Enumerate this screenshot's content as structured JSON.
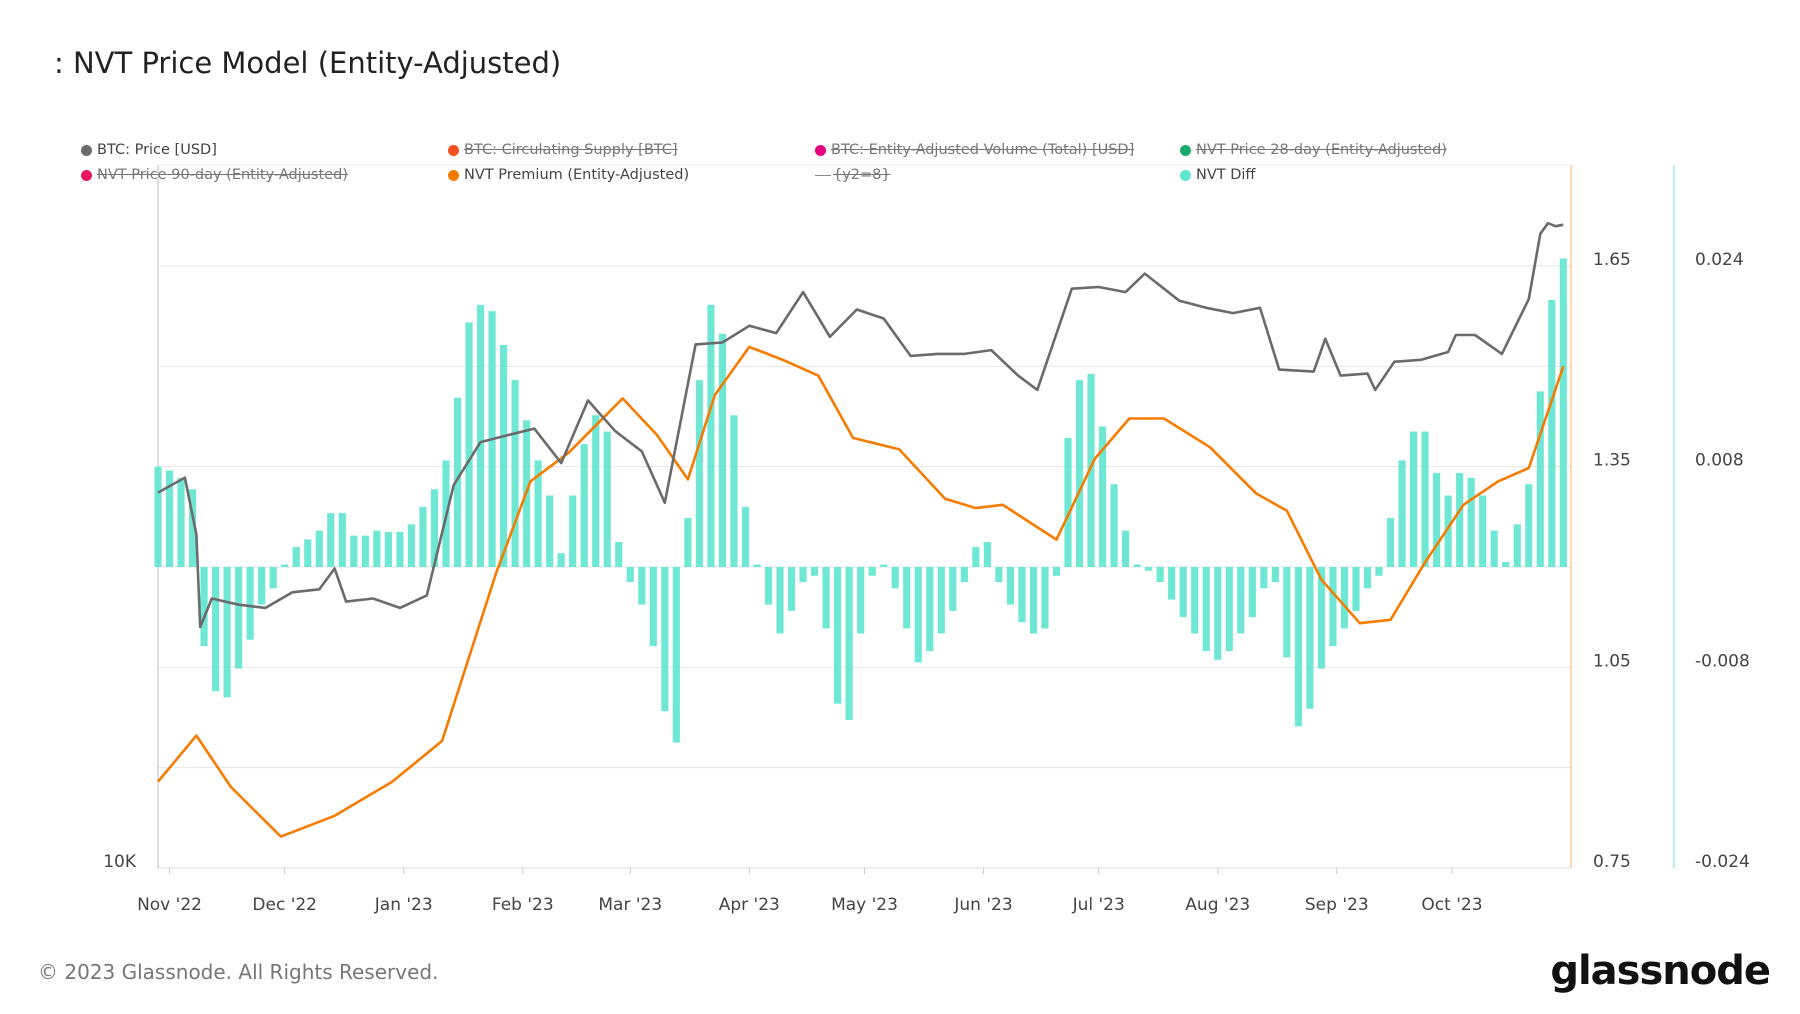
{
  "title": ": NVT Price Model (Entity-Adjusted)",
  "legend": [
    {
      "label": "BTC: Price [USD]",
      "color": "#6b6b6b",
      "enabled": true,
      "marker": "dot"
    },
    {
      "label": "BTC: Circulating Supply [BTC]",
      "color": "#f4511e",
      "enabled": false,
      "marker": "dot"
    },
    {
      "label": "BTC: Entity-Adjusted Volume (Total) [USD]",
      "color": "#e6007e",
      "enabled": false,
      "marker": "dot"
    },
    {
      "label": "NVT Price 28-day (Entity-Adjusted)",
      "color": "#1aaa6b",
      "enabled": false,
      "marker": "dot"
    },
    {
      "label": "NVT Price 90-day (Entity-Adjusted)",
      "color": "#e8175d",
      "enabled": false,
      "marker": "dot"
    },
    {
      "label": "NVT Premium (Entity-Adjusted)",
      "color": "#f57c00",
      "enabled": true,
      "marker": "dot"
    },
    {
      "label": "{y2=8}",
      "color": "#888888",
      "enabled": false,
      "marker": "line"
    },
    {
      "label": "NVT Diff",
      "color": "#5ee6d0",
      "enabled": true,
      "marker": "dot"
    }
  ],
  "footer": "© 2023 Glassnode. All Rights Reserved.",
  "logo": "glassnode",
  "chart_data": {
    "type": "line+bar",
    "xlim": [
      "2022-10-29",
      "2023-11-01"
    ],
    "x_ticks": [
      {
        "date": "2022-11-01",
        "label": "Nov '22"
      },
      {
        "date": "2022-12-01",
        "label": "Dec '22"
      },
      {
        "date": "2023-01-01",
        "label": "Jan '23"
      },
      {
        "date": "2023-02-01",
        "label": "Feb '23"
      },
      {
        "date": "2023-03-01",
        "label": "Mar '23"
      },
      {
        "date": "2023-04-01",
        "label": "Apr '23"
      },
      {
        "date": "2023-05-01",
        "label": "May '23"
      },
      {
        "date": "2023-06-01",
        "label": "Jun '23"
      },
      {
        "date": "2023-07-01",
        "label": "Jul '23"
      },
      {
        "date": "2023-08-01",
        "label": "Aug '23"
      },
      {
        "date": "2023-09-01",
        "label": "Sep '23"
      },
      {
        "date": "2023-10-01",
        "label": "Oct '23"
      }
    ],
    "axes": {
      "price": {
        "scale": "log",
        "ylim": [
          10000,
          38700
        ],
        "ticks": [
          {
            "value": 10000,
            "label": "10K"
          }
        ]
      },
      "premium": {
        "scale": "linear",
        "ylim": [
          0.75,
          1.65
        ],
        "ticks": [
          "1.65",
          "1.35",
          "1.05",
          "0.75"
        ],
        "grid_values": [
          0.75,
          0.9,
          1.05,
          1.2,
          1.35,
          1.5,
          1.65
        ],
        "color": "#f57c00"
      },
      "diff": {
        "scale": "linear",
        "ylim": [
          -0.024,
          0.024
        ],
        "ticks": [
          "0.024",
          "0.008",
          "-0.008",
          "-0.024"
        ],
        "color": "#5ee6d0"
      }
    },
    "grid": true,
    "legend_position": "top",
    "series": [
      {
        "name": "BTC: Price [USD]",
        "type": "line",
        "axis": "price",
        "color": "#6b6b6b",
        "points": [
          [
            "2022-10-29",
            20600
          ],
          [
            "2022-11-05",
            21200
          ],
          [
            "2022-11-08",
            19000
          ],
          [
            "2022-11-09",
            15900
          ],
          [
            "2022-11-12",
            16800
          ],
          [
            "2022-11-19",
            16600
          ],
          [
            "2022-11-26",
            16500
          ],
          [
            "2022-12-03",
            17000
          ],
          [
            "2022-12-10",
            17100
          ],
          [
            "2022-12-14",
            17800
          ],
          [
            "2022-12-17",
            16700
          ],
          [
            "2022-12-24",
            16800
          ],
          [
            "2022-12-31",
            16500
          ],
          [
            "2023-01-07",
            16900
          ],
          [
            "2023-01-14",
            20900
          ],
          [
            "2023-01-21",
            22700
          ],
          [
            "2023-01-28",
            23000
          ],
          [
            "2023-02-04",
            23300
          ],
          [
            "2023-02-11",
            21800
          ],
          [
            "2023-02-18",
            24600
          ],
          [
            "2023-02-25",
            23200
          ],
          [
            "2023-03-04",
            22300
          ],
          [
            "2023-03-10",
            20200
          ],
          [
            "2023-03-18",
            27400
          ],
          [
            "2023-03-25",
            27500
          ],
          [
            "2023-04-01",
            28400
          ],
          [
            "2023-04-08",
            28000
          ],
          [
            "2023-04-15",
            30300
          ],
          [
            "2023-04-22",
            27800
          ],
          [
            "2023-04-29",
            29300
          ],
          [
            "2023-05-06",
            28800
          ],
          [
            "2023-05-13",
            26800
          ],
          [
            "2023-05-20",
            26900
          ],
          [
            "2023-05-27",
            26900
          ],
          [
            "2023-06-03",
            27100
          ],
          [
            "2023-06-10",
            25800
          ],
          [
            "2023-06-15",
            25100
          ],
          [
            "2023-06-24",
            30500
          ],
          [
            "2023-07-01",
            30600
          ],
          [
            "2023-07-08",
            30300
          ],
          [
            "2023-07-13",
            31400
          ],
          [
            "2023-07-22",
            29800
          ],
          [
            "2023-07-29",
            29400
          ],
          [
            "2023-08-05",
            29100
          ],
          [
            "2023-08-12",
            29400
          ],
          [
            "2023-08-17",
            26100
          ],
          [
            "2023-08-26",
            26000
          ],
          [
            "2023-08-29",
            27700
          ],
          [
            "2023-09-02",
            25800
          ],
          [
            "2023-09-09",
            25900
          ],
          [
            "2023-09-11",
            25100
          ],
          [
            "2023-09-16",
            26500
          ],
          [
            "2023-09-23",
            26600
          ],
          [
            "2023-09-30",
            27000
          ],
          [
            "2023-10-02",
            27900
          ],
          [
            "2023-10-07",
            27900
          ],
          [
            "2023-10-14",
            26900
          ],
          [
            "2023-10-21",
            29900
          ],
          [
            "2023-10-24",
            33900
          ],
          [
            "2023-10-26",
            34600
          ],
          [
            "2023-10-28",
            34400
          ],
          [
            "2023-10-30",
            34500
          ]
        ]
      },
      {
        "name": "NVT Premium (Entity-Adjusted)",
        "type": "line",
        "axis": "premium",
        "color": "#f57c00",
        "points": [
          [
            "2022-10-29",
            0.879
          ],
          [
            "2022-11-08",
            0.948
          ],
          [
            "2022-11-17",
            0.871
          ],
          [
            "2022-11-30",
            0.797
          ],
          [
            "2022-12-14",
            0.828
          ],
          [
            "2022-12-29",
            0.879
          ],
          [
            "2023-01-11",
            0.94
          ],
          [
            "2023-01-25",
            1.19
          ],
          [
            "2023-02-03",
            1.328
          ],
          [
            "2023-02-13",
            1.371
          ],
          [
            "2023-02-27",
            1.452
          ],
          [
            "2023-03-08",
            1.397
          ],
          [
            "2023-03-16",
            1.331
          ],
          [
            "2023-03-23",
            1.457
          ],
          [
            "2023-04-01",
            1.529
          ],
          [
            "2023-04-10",
            1.509
          ],
          [
            "2023-04-19",
            1.486
          ],
          [
            "2023-04-28",
            1.393
          ],
          [
            "2023-05-10",
            1.376
          ],
          [
            "2023-05-22",
            1.302
          ],
          [
            "2023-05-30",
            1.288
          ],
          [
            "2023-06-06",
            1.293
          ],
          [
            "2023-06-20",
            1.241
          ],
          [
            "2023-06-30",
            1.362
          ],
          [
            "2023-07-09",
            1.422
          ],
          [
            "2023-07-18",
            1.422
          ],
          [
            "2023-07-30",
            1.379
          ],
          [
            "2023-08-11",
            1.31
          ],
          [
            "2023-08-19",
            1.284
          ],
          [
            "2023-08-28",
            1.181
          ],
          [
            "2023-09-07",
            1.116
          ],
          [
            "2023-09-15",
            1.121
          ],
          [
            "2023-09-24",
            1.207
          ],
          [
            "2023-10-04",
            1.293
          ],
          [
            "2023-10-13",
            1.328
          ],
          [
            "2023-10-21",
            1.348
          ],
          [
            "2023-10-30",
            1.5
          ]
        ]
      },
      {
        "name": "NVT Diff",
        "type": "bar",
        "axis": "diff",
        "color": "#5ee6d0",
        "dates": [
          "2022-10-29",
          "2022-11-01",
          "2022-11-04",
          "2022-11-07",
          "2022-11-10",
          "2022-11-13",
          "2022-11-16",
          "2022-11-19",
          "2022-11-22",
          "2022-11-25",
          "2022-11-28",
          "2022-12-01",
          "2022-12-04",
          "2022-12-07",
          "2022-12-10",
          "2022-12-13",
          "2022-12-16",
          "2022-12-19",
          "2022-12-22",
          "2022-12-25",
          "2022-12-28",
          "2022-12-31",
          "2023-01-03",
          "2023-01-06",
          "2023-01-09",
          "2023-01-12",
          "2023-01-15",
          "2023-01-18",
          "2023-01-21",
          "2023-01-24",
          "2023-01-27",
          "2023-01-30",
          "2023-02-02",
          "2023-02-05",
          "2023-02-08",
          "2023-02-11",
          "2023-02-14",
          "2023-02-17",
          "2023-02-20",
          "2023-02-23",
          "2023-02-26",
          "2023-03-01",
          "2023-03-04",
          "2023-03-07",
          "2023-03-10",
          "2023-03-13",
          "2023-03-16",
          "2023-03-19",
          "2023-03-22",
          "2023-03-25",
          "2023-03-28",
          "2023-03-31",
          "2023-04-03",
          "2023-04-06",
          "2023-04-09",
          "2023-04-12",
          "2023-04-15",
          "2023-04-18",
          "2023-04-21",
          "2023-04-24",
          "2023-04-27",
          "2023-04-30",
          "2023-05-03",
          "2023-05-06",
          "2023-05-09",
          "2023-05-12",
          "2023-05-15",
          "2023-05-18",
          "2023-05-21",
          "2023-05-24",
          "2023-05-27",
          "2023-05-30",
          "2023-06-02",
          "2023-06-05",
          "2023-06-08",
          "2023-06-11",
          "2023-06-14",
          "2023-06-17",
          "2023-06-20",
          "2023-06-23",
          "2023-06-26",
          "2023-06-29",
          "2023-07-02",
          "2023-07-05",
          "2023-07-08",
          "2023-07-11",
          "2023-07-14",
          "2023-07-17",
          "2023-07-20",
          "2023-07-23",
          "2023-07-26",
          "2023-07-29",
          "2023-08-01",
          "2023-08-04",
          "2023-08-07",
          "2023-08-10",
          "2023-08-13",
          "2023-08-16",
          "2023-08-19",
          "2023-08-22",
          "2023-08-25",
          "2023-08-28",
          "2023-08-31",
          "2023-09-03",
          "2023-09-06",
          "2023-09-09",
          "2023-09-12",
          "2023-09-15",
          "2023-09-18",
          "2023-09-21",
          "2023-09-24",
          "2023-09-27",
          "2023-09-30",
          "2023-10-03",
          "2023-10-06",
          "2023-10-09",
          "2023-10-12",
          "2023-10-15",
          "2023-10-18",
          "2023-10-21",
          "2023-10-24",
          "2023-10-27",
          "2023-10-30"
        ],
        "values": [
          0.008,
          0.0077,
          0.0071,
          0.0062,
          -0.0063,
          -0.0099,
          -0.0104,
          -0.0081,
          -0.0058,
          -0.003,
          -0.0017,
          0.0002,
          0.0016,
          0.0022,
          0.0029,
          0.0043,
          0.0043,
          0.0025,
          0.0025,
          0.0029,
          0.0028,
          0.0028,
          0.0034,
          0.0048,
          0.0062,
          0.0085,
          0.0135,
          0.0195,
          0.0209,
          0.0204,
          0.0177,
          0.0149,
          0.0117,
          0.0085,
          0.0057,
          0.0011,
          0.0057,
          0.0098,
          0.0121,
          0.0108,
          0.002,
          -0.0012,
          -0.003,
          -0.0063,
          -0.0115,
          -0.014,
          0.0039,
          0.0149,
          0.0209,
          0.0186,
          0.0121,
          0.0048,
          0.0002,
          -0.003,
          -0.0053,
          -0.0035,
          -0.0012,
          -0.0007,
          -0.0049,
          -0.0109,
          -0.0122,
          -0.0053,
          -0.0007,
          0.0002,
          -0.0017,
          -0.0049,
          -0.0076,
          -0.0067,
          -0.0053,
          -0.0035,
          -0.0012,
          0.0016,
          0.002,
          -0.0012,
          -0.003,
          -0.0044,
          -0.0053,
          -0.0049,
          -0.0007,
          0.0103,
          0.0149,
          0.0154,
          0.0112,
          0.0066,
          0.0029,
          0.0002,
          -0.0003,
          -0.0012,
          -0.0026,
          -0.004,
          -0.0053,
          -0.0067,
          -0.0074,
          -0.0067,
          -0.0053,
          -0.004,
          -0.0017,
          -0.0012,
          -0.0072,
          -0.0127,
          -0.0113,
          -0.0081,
          -0.0063,
          -0.0049,
          -0.0035,
          -0.0017,
          -0.0007,
          0.0039,
          0.0085,
          0.0108,
          0.0108,
          0.0075,
          0.0057,
          0.0075,
          0.0071,
          0.0057,
          0.0029,
          0.0004,
          0.0034,
          0.0066,
          0.014,
          0.0213,
          0.0246
        ]
      }
    ]
  }
}
